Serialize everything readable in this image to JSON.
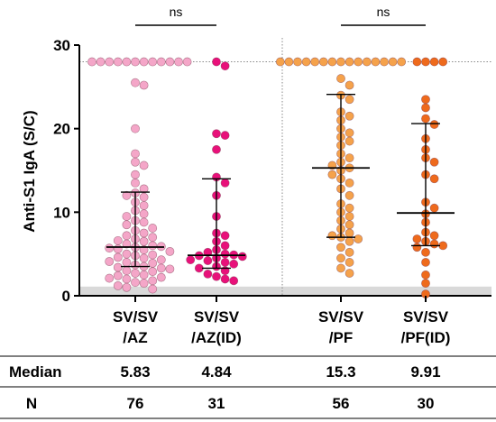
{
  "chart_data": {
    "type": "scatter",
    "ylabel": "Anti-S1 IgA (S/C)",
    "ylim": [
      0,
      30
    ],
    "yticks": [
      "0",
      "10",
      "20",
      "30"
    ],
    "cutoff_band": [
      0,
      1.1
    ],
    "saturation_line": 28,
    "significance": [
      {
        "groups": [
          0,
          1
        ],
        "label": "ns"
      },
      {
        "groups": [
          2,
          3
        ],
        "label": "ns"
      }
    ],
    "groups": [
      {
        "name_line1": "SV/SV",
        "name_line2": "/AZ",
        "color": "#f4a6c8",
        "median": 5.83,
        "iqr": [
          3.5,
          12.4
        ],
        "n": 76,
        "values": [
          28,
          28,
          28,
          28,
          28,
          28,
          28,
          28,
          28,
          28,
          28,
          28,
          25.5,
          25.2,
          20,
          17,
          16,
          15.6,
          14.5,
          13.5,
          12.8,
          12.3,
          12,
          11.8,
          11.2,
          10.8,
          10.2,
          9.8,
          9.5,
          9,
          8.8,
          8.5,
          8.1,
          7.8,
          7.5,
          7.2,
          7,
          6.8,
          6.5,
          6.2,
          6,
          5.9,
          5.8,
          5.7,
          5.6,
          5.5,
          5.3,
          5,
          4.8,
          4.6,
          4.5,
          4.3,
          4.1,
          4,
          3.9,
          3.7,
          3.5,
          3.4,
          3.3,
          3.2,
          3,
          2.9,
          2.7,
          2.5,
          2.4,
          2.2,
          2.1,
          2,
          1.8,
          1.6,
          1.5,
          1.2,
          1,
          0.8,
          4.9,
          6.6
        ]
      },
      {
        "name_line1": "SV/SV",
        "name_line2": "/AZ(ID)",
        "color": "#e8117a",
        "median": 4.84,
        "iqr": [
          3.3,
          14.0
        ],
        "n": 31,
        "values": [
          28,
          27.5,
          19.4,
          19.2,
          17.5,
          14.2,
          13.5,
          12,
          9.5,
          7.5,
          7.2,
          6.5,
          6,
          5.5,
          5.2,
          5,
          4.9,
          4.8,
          4.7,
          4.5,
          4.3,
          4.2,
          4,
          3.8,
          3.5,
          3.3,
          3,
          2.6,
          2.3,
          2,
          1.8
        ]
      },
      {
        "name_line1": "SV/SV",
        "name_line2": "/PF",
        "color": "#f5a24b",
        "median": 15.3,
        "iqr": [
          7.0,
          24.1
        ],
        "n": 56,
        "values": [
          28,
          28,
          28,
          28,
          28,
          28,
          28,
          28,
          28,
          28,
          28,
          28,
          28,
          28,
          28,
          26,
          25.2,
          24,
          23.5,
          22,
          21.5,
          21,
          20,
          19.5,
          19,
          18.5,
          18,
          17,
          16.5,
          16,
          15.6,
          15.3,
          15,
          14.5,
          14,
          13.5,
          12.8,
          12,
          11,
          10.5,
          10,
          9.5,
          9,
          8.5,
          8,
          7.5,
          7.2,
          7,
          6.8,
          6.5,
          5.8,
          5.2,
          4.5,
          4,
          3.3,
          2.7
        ]
      },
      {
        "name_line1": "SV/SV",
        "name_line2": "/PF(ID)",
        "color": "#ee6a1c",
        "median": 9.91,
        "iqr": [
          6.0,
          20.6
        ],
        "n": 30,
        "values": [
          28,
          28,
          28,
          28,
          23.5,
          22.5,
          21.2,
          20.5,
          18.8,
          17.5,
          16.5,
          16,
          14.5,
          14,
          11.2,
          10.5,
          9.8,
          8.8,
          7.6,
          7.2,
          6.8,
          6.5,
          6.2,
          6,
          5.8,
          5.2,
          4,
          2.5,
          1.5,
          0.2
        ]
      }
    ],
    "table": {
      "row_labels": [
        "Median",
        "N"
      ],
      "median": [
        "5.83",
        "4.84",
        "15.3",
        "9.91"
      ],
      "n": [
        "76",
        "31",
        "56",
        "30"
      ]
    }
  }
}
